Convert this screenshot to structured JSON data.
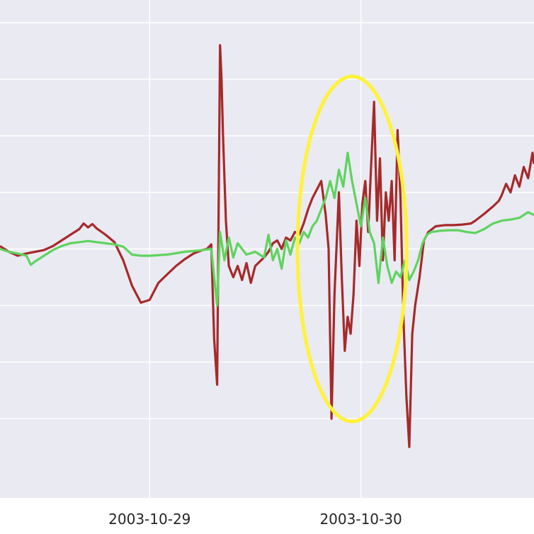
{
  "chart_data": {
    "type": "line",
    "x_axis": {
      "type": "date",
      "ticks": [
        {
          "value": "2003-10-29T00:00",
          "label": "2003-10-29"
        },
        {
          "value": "2003-10-30T00:00",
          "label": "2003-10-30"
        }
      ],
      "range": [
        "2003-10-28T07:00",
        "2003-10-30T19:40"
      ]
    },
    "y_axis": {
      "range": [
        -4.4,
        4.4
      ],
      "gridlines": [
        -3,
        -2,
        -1,
        0,
        1,
        2,
        3,
        4
      ],
      "tick_labels_visible": false
    },
    "grid": true,
    "colors": {
      "plot_bg": "#eaeaf2",
      "grid": "#ffffff",
      "series_1": "#a52a2a",
      "series_2": "#5fd35f",
      "annotation": "#fff23b"
    },
    "series": [
      {
        "color": "#a52a2a",
        "points": [
          [
            "2003-10-28T07:00",
            0.05
          ],
          [
            "2003-10-28T08:00",
            -0.05
          ],
          [
            "2003-10-28T09:00",
            -0.12
          ],
          [
            "2003-10-28T10:00",
            -0.08
          ],
          [
            "2003-10-28T11:00",
            -0.05
          ],
          [
            "2003-10-28T12:00",
            -0.02
          ],
          [
            "2003-10-28T13:00",
            0.05
          ],
          [
            "2003-10-28T14:00",
            0.15
          ],
          [
            "2003-10-28T15:00",
            0.25
          ],
          [
            "2003-10-28T16:00",
            0.35
          ],
          [
            "2003-10-28T16:30",
            0.45
          ],
          [
            "2003-10-28T17:00",
            0.38
          ],
          [
            "2003-10-28T17:30",
            0.44
          ],
          [
            "2003-10-28T18:00",
            0.36
          ],
          [
            "2003-10-28T19:00",
            0.25
          ],
          [
            "2003-10-28T20:00",
            0.12
          ],
          [
            "2003-10-28T21:00",
            -0.2
          ],
          [
            "2003-10-28T22:00",
            -0.65
          ],
          [
            "2003-10-28T23:00",
            -0.95
          ],
          [
            "2003-10-29T00:00",
            -0.9
          ],
          [
            "2003-10-29T01:00",
            -0.6
          ],
          [
            "2003-10-29T02:00",
            -0.45
          ],
          [
            "2003-10-29T03:00",
            -0.3
          ],
          [
            "2003-10-29T04:00",
            -0.18
          ],
          [
            "2003-10-29T05:00",
            -0.08
          ],
          [
            "2003-10-29T06:00",
            -0.02
          ],
          [
            "2003-10-29T06:30",
            0.0
          ],
          [
            "2003-10-29T07:00",
            0.08
          ],
          [
            "2003-10-29T07:20",
            -1.6
          ],
          [
            "2003-10-29T07:40",
            -2.4
          ],
          [
            "2003-10-29T08:00",
            3.6
          ],
          [
            "2003-10-29T08:10",
            3.0
          ],
          [
            "2003-10-29T08:20",
            2.0
          ],
          [
            "2003-10-29T08:40",
            0.5
          ],
          [
            "2003-10-29T09:00",
            -0.3
          ],
          [
            "2003-10-29T09:30",
            -0.5
          ],
          [
            "2003-10-29T10:00",
            -0.3
          ],
          [
            "2003-10-29T10:30",
            -0.55
          ],
          [
            "2003-10-29T11:00",
            -0.25
          ],
          [
            "2003-10-29T11:30",
            -0.6
          ],
          [
            "2003-10-29T12:00",
            -0.3
          ],
          [
            "2003-10-29T13:00",
            -0.15
          ],
          [
            "2003-10-29T13:30",
            -0.05
          ],
          [
            "2003-10-29T14:00",
            0.1
          ],
          [
            "2003-10-29T14:30",
            0.15
          ],
          [
            "2003-10-29T15:00",
            0.0
          ],
          [
            "2003-10-29T15:30",
            0.2
          ],
          [
            "2003-10-29T16:00",
            0.15
          ],
          [
            "2003-10-29T16:30",
            0.3
          ],
          [
            "2003-10-29T17:00",
            0.25
          ],
          [
            "2003-10-29T17:30",
            0.45
          ],
          [
            "2003-10-29T18:00",
            0.7
          ],
          [
            "2003-10-29T18:30",
            0.9
          ],
          [
            "2003-10-29T19:00",
            1.05
          ],
          [
            "2003-10-29T19:30",
            1.2
          ],
          [
            "2003-10-29T20:00",
            0.6
          ],
          [
            "2003-10-29T20:20",
            0.0
          ],
          [
            "2003-10-29T20:40",
            -3.0
          ],
          [
            "2003-10-29T21:00",
            -0.8
          ],
          [
            "2003-10-29T21:30",
            1.0
          ],
          [
            "2003-10-29T21:50",
            -0.5
          ],
          [
            "2003-10-29T22:10",
            -1.8
          ],
          [
            "2003-10-29T22:30",
            -1.2
          ],
          [
            "2003-10-29T22:50",
            -1.5
          ],
          [
            "2003-10-29T23:10",
            -0.8
          ],
          [
            "2003-10-29T23:30",
            0.5
          ],
          [
            "2003-10-29T23:50",
            -0.3
          ],
          [
            "2003-10-30T00:10",
            0.8
          ],
          [
            "2003-10-30T00:30",
            1.2
          ],
          [
            "2003-10-30T00:50",
            0.3
          ],
          [
            "2003-10-30T01:10",
            1.5
          ],
          [
            "2003-10-30T01:30",
            2.6
          ],
          [
            "2003-10-30T01:50",
            0.5
          ],
          [
            "2003-10-30T02:10",
            1.6
          ],
          [
            "2003-10-30T02:30",
            -0.2
          ],
          [
            "2003-10-30T02:50",
            1.0
          ],
          [
            "2003-10-30T03:10",
            0.5
          ],
          [
            "2003-10-30T03:30",
            1.2
          ],
          [
            "2003-10-30T03:50",
            -0.2
          ],
          [
            "2003-10-30T04:10",
            2.1
          ],
          [
            "2003-10-30T04:30",
            0.9
          ],
          [
            "2003-10-30T04:50",
            -1.2
          ],
          [
            "2003-10-30T05:10",
            -2.6
          ],
          [
            "2003-10-30T05:30",
            -3.5
          ],
          [
            "2003-10-30T05:50",
            -1.5
          ],
          [
            "2003-10-30T06:10",
            -1.0
          ],
          [
            "2003-10-30T06:40",
            -0.5
          ],
          [
            "2003-10-30T07:10",
            0.15
          ],
          [
            "2003-10-30T07:40",
            0.3
          ],
          [
            "2003-10-30T08:30",
            0.4
          ],
          [
            "2003-10-30T09:30",
            0.42
          ],
          [
            "2003-10-30T10:30",
            0.42
          ],
          [
            "2003-10-30T11:30",
            0.43
          ],
          [
            "2003-10-30T12:30",
            0.45
          ],
          [
            "2003-10-30T13:00",
            0.5
          ],
          [
            "2003-10-30T14:00",
            0.62
          ],
          [
            "2003-10-30T15:00",
            0.75
          ],
          [
            "2003-10-30T15:40",
            0.85
          ],
          [
            "2003-10-30T16:00",
            0.95
          ],
          [
            "2003-10-30T16:30",
            1.15
          ],
          [
            "2003-10-30T17:00",
            1.0
          ],
          [
            "2003-10-30T17:30",
            1.3
          ],
          [
            "2003-10-30T18:00",
            1.1
          ],
          [
            "2003-10-30T18:30",
            1.45
          ],
          [
            "2003-10-30T19:00",
            1.25
          ],
          [
            "2003-10-30T19:30",
            1.7
          ],
          [
            "2003-10-30T19:40",
            1.5
          ]
        ]
      },
      {
        "color": "#5fd35f",
        "points": [
          [
            "2003-10-28T07:00",
            0.0
          ],
          [
            "2003-10-28T08:00",
            -0.05
          ],
          [
            "2003-10-28T09:00",
            -0.08
          ],
          [
            "2003-10-28T10:00",
            -0.12
          ],
          [
            "2003-10-28T10:30",
            -0.28
          ],
          [
            "2003-10-28T11:00",
            -0.22
          ],
          [
            "2003-10-28T12:00",
            -0.12
          ],
          [
            "2003-10-28T13:00",
            -0.02
          ],
          [
            "2003-10-28T14:00",
            0.05
          ],
          [
            "2003-10-28T15:00",
            0.1
          ],
          [
            "2003-10-28T16:00",
            0.12
          ],
          [
            "2003-10-28T17:00",
            0.14
          ],
          [
            "2003-10-28T18:00",
            0.12
          ],
          [
            "2003-10-28T19:00",
            0.1
          ],
          [
            "2003-10-28T20:00",
            0.08
          ],
          [
            "2003-10-28T21:00",
            0.04
          ],
          [
            "2003-10-28T22:00",
            -0.1
          ],
          [
            "2003-10-28T23:00",
            -0.12
          ],
          [
            "2003-10-29T00:00",
            -0.12
          ],
          [
            "2003-10-29T02:00",
            -0.1
          ],
          [
            "2003-10-29T04:00",
            -0.05
          ],
          [
            "2003-10-29T06:00",
            -0.02
          ],
          [
            "2003-10-29T07:00",
            0.0
          ],
          [
            "2003-10-29T07:20",
            -0.5
          ],
          [
            "2003-10-29T07:40",
            -1.0
          ],
          [
            "2003-10-29T08:00",
            0.3
          ],
          [
            "2003-10-29T08:30",
            -0.2
          ],
          [
            "2003-10-29T09:00",
            0.2
          ],
          [
            "2003-10-29T09:30",
            -0.15
          ],
          [
            "2003-10-29T10:00",
            0.1
          ],
          [
            "2003-10-29T11:00",
            -0.1
          ],
          [
            "2003-10-29T12:00",
            -0.05
          ],
          [
            "2003-10-29T13:00",
            -0.15
          ],
          [
            "2003-10-29T13:30",
            0.25
          ],
          [
            "2003-10-29T14:00",
            -0.2
          ],
          [
            "2003-10-29T14:30",
            0.0
          ],
          [
            "2003-10-29T15:00",
            -0.35
          ],
          [
            "2003-10-29T15:30",
            0.15
          ],
          [
            "2003-10-29T16:00",
            -0.1
          ],
          [
            "2003-10-29T16:30",
            0.2
          ],
          [
            "2003-10-29T17:00",
            0.1
          ],
          [
            "2003-10-29T17:30",
            0.3
          ],
          [
            "2003-10-29T18:00",
            0.2
          ],
          [
            "2003-10-29T18:30",
            0.4
          ],
          [
            "2003-10-29T19:00",
            0.5
          ],
          [
            "2003-10-29T19:30",
            0.7
          ],
          [
            "2003-10-29T20:00",
            0.9
          ],
          [
            "2003-10-29T20:30",
            1.2
          ],
          [
            "2003-10-29T21:00",
            0.9
          ],
          [
            "2003-10-29T21:30",
            1.4
          ],
          [
            "2003-10-29T22:00",
            1.1
          ],
          [
            "2003-10-29T22:30",
            1.7
          ],
          [
            "2003-10-29T23:00",
            1.2
          ],
          [
            "2003-10-29T23:30",
            0.8
          ],
          [
            "2003-10-30T00:00",
            0.4
          ],
          [
            "2003-10-30T00:30",
            0.9
          ],
          [
            "2003-10-30T01:00",
            0.3
          ],
          [
            "2003-10-30T01:30",
            0.1
          ],
          [
            "2003-10-30T02:00",
            -0.6
          ],
          [
            "2003-10-30T02:30",
            0.2
          ],
          [
            "2003-10-30T03:00",
            -0.3
          ],
          [
            "2003-10-30T03:30",
            -0.6
          ],
          [
            "2003-10-30T04:00",
            -0.4
          ],
          [
            "2003-10-30T04:30",
            -0.5
          ],
          [
            "2003-10-30T05:00",
            -0.2
          ],
          [
            "2003-10-30T05:30",
            -0.55
          ],
          [
            "2003-10-30T06:00",
            -0.4
          ],
          [
            "2003-10-30T06:30",
            -0.2
          ],
          [
            "2003-10-30T07:00",
            0.1
          ],
          [
            "2003-10-30T07:30",
            0.25
          ],
          [
            "2003-10-30T08:00",
            0.3
          ],
          [
            "2003-10-30T09:00",
            0.32
          ],
          [
            "2003-10-30T10:00",
            0.33
          ],
          [
            "2003-10-30T11:00",
            0.33
          ],
          [
            "2003-10-30T12:00",
            0.3
          ],
          [
            "2003-10-30T13:00",
            0.28
          ],
          [
            "2003-10-30T14:00",
            0.35
          ],
          [
            "2003-10-30T15:00",
            0.45
          ],
          [
            "2003-10-30T16:00",
            0.5
          ],
          [
            "2003-10-30T17:00",
            0.52
          ],
          [
            "2003-10-30T18:00",
            0.55
          ],
          [
            "2003-10-30T19:00",
            0.65
          ],
          [
            "2003-10-30T19:40",
            0.6
          ]
        ]
      }
    ],
    "annotations": [
      {
        "type": "ellipse",
        "color": "#fff23b",
        "center_x": "2003-10-29T23:00",
        "center_y": 0.0,
        "radius_time_hours": 6.2,
        "radius_y": 3.05
      }
    ]
  }
}
